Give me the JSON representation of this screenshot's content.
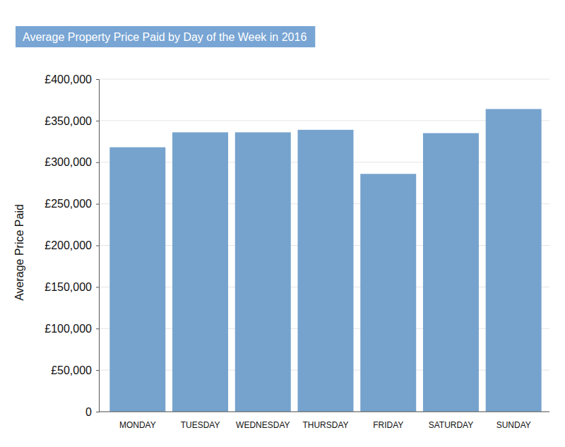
{
  "chart_data": {
    "type": "bar",
    "title": "Average Property Price Paid by Day of the Week in 2016",
    "y_label": "Average Price Paid",
    "categories": [
      "MONDAY",
      "TUESDAY",
      "WEDNESDAY",
      "THURSDAY",
      "FRIDAY",
      "SATURDAY",
      "SUNDAY"
    ],
    "values": [
      318000,
      336000,
      336000,
      339000,
      286000,
      335000,
      364000
    ],
    "color": "#76a3cd",
    "ylim": [
      0,
      400000
    ],
    "yticks": [
      0,
      {
        "value": 50000,
        "label": "£50,000"
      },
      {
        "value": 100000,
        "label": "£100,000"
      },
      {
        "value": 150000,
        "label": "£150,000"
      },
      {
        "value": 200000,
        "label": "£200,000"
      },
      {
        "value": 250000,
        "label": "£250,000"
      },
      {
        "value": 300000,
        "label": "£300,000"
      },
      {
        "value": 350000,
        "label": "£350,000"
      },
      {
        "value": 400000,
        "label": "£400,000"
      }
    ],
    "grid": true
  }
}
